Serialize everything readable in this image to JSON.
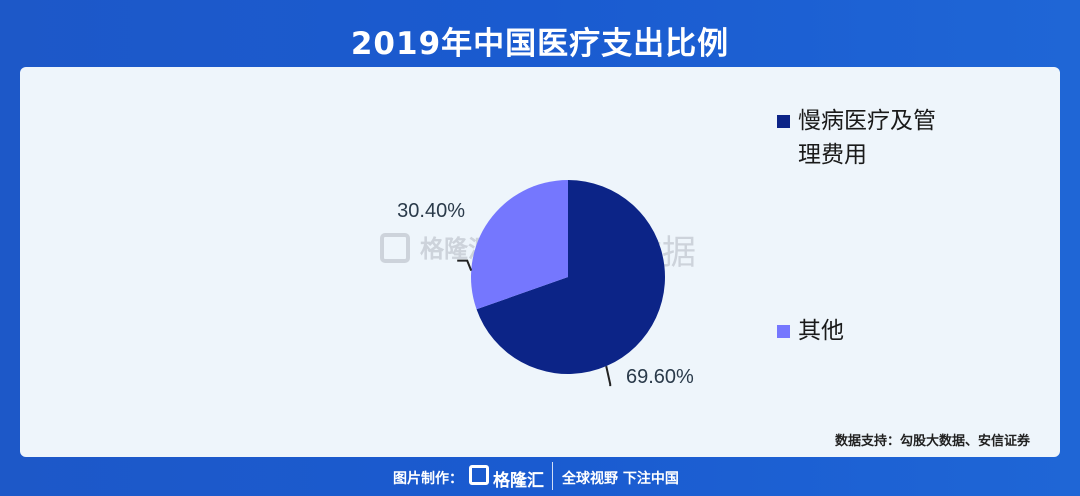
{
  "header": {
    "title": "2019年中国医疗支出比例"
  },
  "chart_data": {
    "type": "pie",
    "categories": [
      "慢病医疗及管理费用",
      "其他"
    ],
    "values": [
      69.6,
      30.4
    ],
    "labels": [
      "69.60%",
      "30.40%"
    ],
    "colors": [
      "#0c2487",
      "#7577fe"
    ],
    "legend_placement": "right"
  },
  "legend": {
    "items": [
      {
        "line1": "慢病医疗及管",
        "line2": "理费用",
        "color": "#0c2487"
      },
      {
        "line1": "其他",
        "color": "#7577fe"
      }
    ]
  },
  "watermark": {
    "brand": "格隆汇",
    "text": "勾股大数据"
  },
  "source": "数据支持：勾股大数据、安信证券",
  "footer": {
    "label": "图片制作：",
    "brand": "格隆汇",
    "slogan": "全球视野 下注中国"
  }
}
